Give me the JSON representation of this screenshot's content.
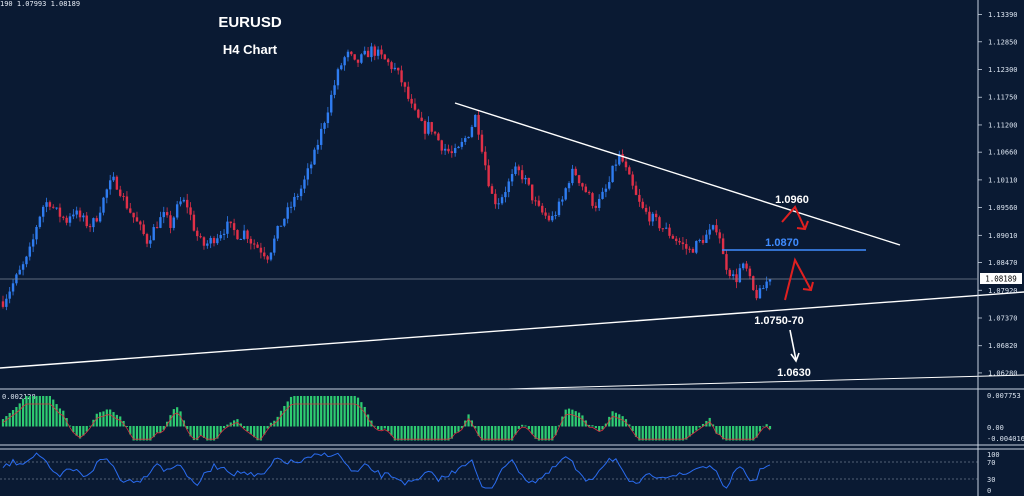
{
  "header": {
    "ohlc": "190 1.07993 1.08189"
  },
  "chart_data": {
    "type": "candlestick",
    "title": "EURUSD",
    "subtitle": "H4 Chart",
    "symbol": "EURUSD",
    "timeframe": "H4",
    "y_ticks": [
      "1.13390",
      "1.12850",
      "1.12300",
      "1.11750",
      "1.11200",
      "1.10660",
      "1.10110",
      "1.09560",
      "1.09010",
      "1.08470",
      "1.07920",
      "1.07370",
      "1.06820",
      "1.06280"
    ],
    "ylim": [
      1.061,
      1.1356
    ],
    "current_price": "1.08189",
    "price_path": [
      1.077,
      1.079,
      1.081,
      1.083,
      1.085,
      1.088,
      1.093,
      1.096,
      1.097,
      1.095,
      1.094,
      1.093,
      1.095,
      1.094,
      1.093,
      1.092,
      1.093,
      1.096,
      1.099,
      1.101,
      1.1,
      1.097,
      1.095,
      1.093,
      1.091,
      1.089,
      1.091,
      1.093,
      1.094,
      1.092,
      1.095,
      1.097,
      1.096,
      1.092,
      1.089,
      1.088,
      1.089,
      1.09,
      1.091,
      1.092,
      1.091,
      1.09,
      1.091,
      1.089,
      1.088,
      1.087,
      1.086,
      1.089,
      1.092,
      1.094,
      1.096,
      1.098,
      1.1,
      1.103,
      1.106,
      1.11,
      1.114,
      1.118,
      1.122,
      1.125,
      1.126,
      1.124,
      1.125,
      1.126,
      1.127,
      1.126,
      1.125,
      1.124,
      1.123,
      1.121,
      1.118,
      1.115,
      1.113,
      1.111,
      1.112,
      1.11,
      1.108,
      1.107,
      1.106,
      1.107,
      1.109,
      1.111,
      1.114,
      1.108,
      1.102,
      1.097,
      1.097,
      1.099,
      1.101,
      1.103,
      1.102,
      1.1,
      1.097,
      1.095,
      1.094,
      1.093,
      1.095,
      1.097,
      1.101,
      1.103,
      1.101,
      1.099,
      1.097,
      1.096,
      1.098,
      1.1,
      1.104,
      1.106,
      1.103,
      1.1,
      1.097,
      1.095,
      1.094,
      1.093,
      1.092,
      1.091,
      1.09,
      1.089,
      1.088,
      1.087,
      1.088,
      1.089,
      1.09,
      1.091,
      1.092,
      1.085,
      1.083,
      1.081,
      1.084,
      1.083,
      1.079,
      1.078,
      1.08,
      1.082
    ],
    "annotations": [
      {
        "label": "1.0960",
        "kind": "resistance target",
        "color": "#ffffff",
        "arrow": "red"
      },
      {
        "label": "1.0870",
        "kind": "horizontal resistance",
        "color": "#3f8cff",
        "arrow": "red"
      },
      {
        "label": "1.0750-70",
        "kind": "support zone",
        "color": "#ffffff"
      },
      {
        "label": "1.0630",
        "kind": "downside target",
        "color": "#ffffff",
        "arrow": "white"
      }
    ],
    "trendlines": [
      "descending resistance",
      "rising support",
      "long rising support"
    ],
    "indicators": [
      {
        "name": "MACD",
        "readout": "0.002128",
        "scale_ticks": [
          "0.007753",
          "0.00",
          "-0.004016"
        ]
      },
      {
        "name": "RSI",
        "scale_ticks": [
          "100",
          "70",
          "30",
          "0"
        ]
      }
    ]
  }
}
